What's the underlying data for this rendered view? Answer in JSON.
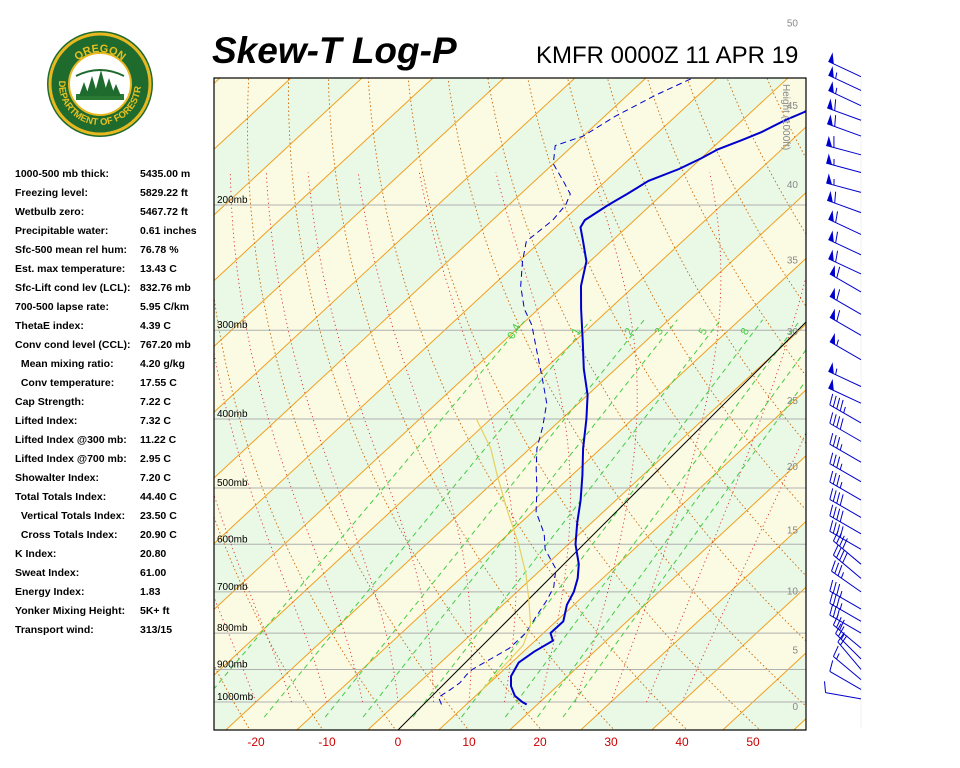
{
  "header": {
    "title": "Skew-T Log-P",
    "station_time": "KMFR 0000Z 11 APR 19"
  },
  "logo": {
    "top_text": "OREGON",
    "ring_text": "DEPARTMENT OF FORESTRY"
  },
  "indices": [
    {
      "label": "1000-500 mb thick:",
      "value": "5435.00 m"
    },
    {
      "label": "Freezing level:",
      "value": "5829.22 ft"
    },
    {
      "label": "Wetbulb zero:",
      "value": "5467.72 ft"
    },
    {
      "label": "Precipitable water:",
      "value": "0.61 inches"
    },
    {
      "label": "Sfc-500 mean rel hum:",
      "value": "76.78 %"
    },
    {
      "label": "Est. max temperature:",
      "value": "13.43 C"
    },
    {
      "label": "Sfc-Lift cond lev (LCL):",
      "value": "832.76 mb"
    },
    {
      "label": "700-500 lapse rate:",
      "value": "5.95 C/km"
    },
    {
      "label": "ThetaE index:",
      "value": "4.39 C"
    },
    {
      "label": "Conv cond level (CCL):",
      "value": "767.20 mb"
    },
    {
      "label": " Mean mixing ratio:",
      "value": "4.20 g/kg"
    },
    {
      "label": " Conv temperature:",
      "value": "17.55 C"
    },
    {
      "label": "Cap Strength:",
      "value": "7.22 C"
    },
    {
      "label": "Lifted Index:",
      "value": "7.32 C"
    },
    {
      "label": "Lifted Index @300 mb:",
      "value": "11.22 C"
    },
    {
      "label": "Lifted Index @700 mb:",
      "value": "2.95 C"
    },
    {
      "label": "Showalter Index:",
      "value": "7.20 C"
    },
    {
      "label": "Total Totals Index:",
      "value": "44.40 C"
    },
    {
      "label": " Vertical Totals Index:",
      "value": "23.50 C"
    },
    {
      "label": " Cross Totals Index:",
      "value": "20.90 C"
    },
    {
      "label": "K Index:",
      "value": "20.80"
    },
    {
      "label": "Sweat Index:",
      "value": "61.00"
    },
    {
      "label": "Energy Index:",
      "value": "1.83"
    },
    {
      "label": "Yonker Mixing Height:",
      "value": "5K+ ft"
    },
    {
      "label": "Transport wind:",
      "value": "313/15"
    }
  ],
  "chart_data": {
    "type": "line",
    "xlabel": "",
    "ylabel": "",
    "x_ticks": [
      -20,
      -10,
      0,
      10,
      20,
      30,
      40,
      50
    ],
    "xlim": [
      -25,
      58
    ],
    "pressure_levels": [
      {
        "p": 200,
        "label": "200mb"
      },
      {
        "p": 300,
        "label": "300mb"
      },
      {
        "p": 400,
        "label": "400mb"
      },
      {
        "p": 500,
        "label": "500mb"
      },
      {
        "p": 600,
        "label": "600mb"
      },
      {
        "p": 700,
        "label": "700mb"
      },
      {
        "p": 800,
        "label": "800mb"
      },
      {
        "p": 900,
        "label": "900mb"
      },
      {
        "p": 1000,
        "label": "1000mb"
      }
    ],
    "ylim_mb": [
      1050,
      130
    ],
    "height_axis": {
      "title": "Height (1000ft)",
      "ticks": [
        0,
        5,
        10,
        15,
        20,
        25,
        30,
        35,
        40,
        45,
        50
      ]
    },
    "mixing_ratio_labels": [
      "0.4",
      "1",
      "2",
      "3",
      "5",
      "8"
    ],
    "colors": {
      "isotherm": "#f0a020",
      "dry_adiabat": "#cc6600",
      "moist_adiabat": "#e03030",
      "mixing_ratio": "#44cc44",
      "isobar": "#b0b0b0",
      "temperature": "#0000cc",
      "dewpoint": "#0000cc",
      "parcel": "#e8d060",
      "tick_label": "#cc0000",
      "level_label": "#000000",
      "height_label": "#888888"
    },
    "series": [
      {
        "name": "",
        "style": "solid",
        "points": [
          [
            1008,
            18.5
          ],
          [
            1000,
            17.5
          ],
          [
            980,
            15.5
          ],
          [
            950,
            13.5
          ],
          [
            920,
            12.0
          ],
          [
            880,
            11.0
          ],
          [
            850,
            11.5
          ],
          [
            820,
            12.5
          ],
          [
            800,
            11.0
          ],
          [
            770,
            11.0
          ],
          [
            730,
            9.0
          ],
          [
            700,
            8.0
          ],
          [
            670,
            6.5
          ],
          [
            640,
            4.5
          ],
          [
            600,
            1.0
          ],
          [
            560,
            -2.0
          ],
          [
            520,
            -5.0
          ],
          [
            480,
            -8.5
          ],
          [
            440,
            -12.5
          ],
          [
            400,
            -16.5
          ],
          [
            370,
            -20.0
          ],
          [
            340,
            -24.5
          ],
          [
            310,
            -29.0
          ],
          [
            280,
            -34.0
          ],
          [
            260,
            -37.5
          ],
          [
            240,
            -40.5
          ],
          [
            225,
            -44.0
          ],
          [
            215,
            -46.5
          ],
          [
            210,
            -47.0
          ],
          [
            205,
            -46.5
          ],
          [
            200,
            -46.0
          ],
          [
            193,
            -45.0
          ],
          [
            185,
            -44.0
          ],
          [
            178,
            -41.5
          ],
          [
            172,
            -40.0
          ],
          [
            167,
            -39.0
          ],
          [
            162,
            -37.0
          ],
          [
            158,
            -35.5
          ],
          [
            152,
            -34.0
          ],
          [
            148,
            -32.5
          ],
          [
            143,
            -31.5
          ],
          [
            138,
            -31.5
          ],
          [
            135,
            -31.0
          ]
        ]
      },
      {
        "name": "",
        "style": "dashed",
        "points": [
          [
            1008,
            6.5
          ],
          [
            985,
            5.0
          ],
          [
            960,
            5.5
          ],
          [
            940,
            5.8
          ],
          [
            915,
            5.5
          ],
          [
            900,
            5.5
          ],
          [
            870,
            6.5
          ],
          [
            840,
            7.5
          ],
          [
            800,
            7.5
          ],
          [
            760,
            6.5
          ],
          [
            720,
            5.5
          ],
          [
            690,
            4.5
          ],
          [
            650,
            2.0
          ],
          [
            610,
            -2.5
          ],
          [
            580,
            -5.0
          ],
          [
            540,
            -9.5
          ],
          [
            500,
            -13.0
          ],
          [
            470,
            -16.0
          ],
          [
            440,
            -19.0
          ],
          [
            410,
            -21.5
          ],
          [
            380,
            -24.5
          ],
          [
            350,
            -29.0
          ],
          [
            320,
            -34.0
          ],
          [
            295,
            -38.5
          ],
          [
            280,
            -42.0
          ],
          [
            260,
            -46.0
          ],
          [
            240,
            -49.5
          ],
          [
            225,
            -52.0
          ],
          [
            210,
            -51.5
          ],
          [
            200,
            -52.0
          ],
          [
            193,
            -53.0
          ],
          [
            185,
            -56.0
          ],
          [
            175,
            -60.0
          ],
          [
            165,
            -62.5
          ],
          [
            160,
            -60.0
          ],
          [
            150,
            -58.5
          ],
          [
            140,
            -56.0
          ],
          [
            130,
            -52.5
          ]
        ]
      },
      {
        "name": "",
        "style": "parcel",
        "points": [
          [
            960,
            10.0
          ],
          [
            900,
            9.5
          ],
          [
            832,
            9.0
          ],
          [
            780,
            7.0
          ],
          [
            720,
            3.0
          ],
          [
            660,
            -1.5
          ],
          [
            600,
            -7.0
          ],
          [
            540,
            -13.5
          ],
          [
            480,
            -20.5
          ],
          [
            440,
            -25.5
          ],
          [
            400,
            -32.0
          ]
        ]
      }
    ],
    "wind_barbs": [
      {
        "p": 990,
        "dir": 280,
        "spd": 10
      },
      {
        "p": 960,
        "dir": 300,
        "spd": 10
      },
      {
        "p": 930,
        "dir": 310,
        "spd": 15
      },
      {
        "p": 900,
        "dir": 320,
        "spd": 20
      },
      {
        "p": 870,
        "dir": 315,
        "spd": 25
      },
      {
        "p": 840,
        "dir": 310,
        "spd": 30
      },
      {
        "p": 800,
        "dir": 300,
        "spd": 30
      },
      {
        "p": 770,
        "dir": 300,
        "spd": 35
      },
      {
        "p": 740,
        "dir": 300,
        "spd": 35
      },
      {
        "p": 700,
        "dir": 305,
        "spd": 35
      },
      {
        "p": 670,
        "dir": 310,
        "spd": 40
      },
      {
        "p": 640,
        "dir": 310,
        "spd": 40
      },
      {
        "p": 610,
        "dir": 300,
        "spd": 40
      },
      {
        "p": 580,
        "dir": 300,
        "spd": 40
      },
      {
        "p": 550,
        "dir": 300,
        "spd": 40
      },
      {
        "p": 520,
        "dir": 300,
        "spd": 35
      },
      {
        "p": 490,
        "dir": 300,
        "spd": 35
      },
      {
        "p": 460,
        "dir": 300,
        "spd": 35
      },
      {
        "p": 430,
        "dir": 300,
        "spd": 40
      },
      {
        "p": 405,
        "dir": 300,
        "spd": 45
      },
      {
        "p": 380,
        "dir": 295,
        "spd": 50
      },
      {
        "p": 360,
        "dir": 295,
        "spd": 55
      },
      {
        "p": 330,
        "dir": 300,
        "spd": 55
      },
      {
        "p": 305,
        "dir": 300,
        "spd": 60
      },
      {
        "p": 285,
        "dir": 300,
        "spd": 60
      },
      {
        "p": 265,
        "dir": 300,
        "spd": 60
      },
      {
        "p": 250,
        "dir": 295,
        "spd": 60
      },
      {
        "p": 235,
        "dir": 295,
        "spd": 60
      },
      {
        "p": 220,
        "dir": 295,
        "spd": 60
      },
      {
        "p": 205,
        "dir": 290,
        "spd": 60
      },
      {
        "p": 192,
        "dir": 285,
        "spd": 55
      },
      {
        "p": 180,
        "dir": 285,
        "spd": 55
      },
      {
        "p": 170,
        "dir": 285,
        "spd": 60
      },
      {
        "p": 160,
        "dir": 290,
        "spd": 60
      },
      {
        "p": 152,
        "dir": 290,
        "spd": 60
      },
      {
        "p": 145,
        "dir": 295,
        "spd": 55
      },
      {
        "p": 138,
        "dir": 295,
        "spd": 55
      },
      {
        "p": 132,
        "dir": 295,
        "spd": 50
      }
    ]
  }
}
